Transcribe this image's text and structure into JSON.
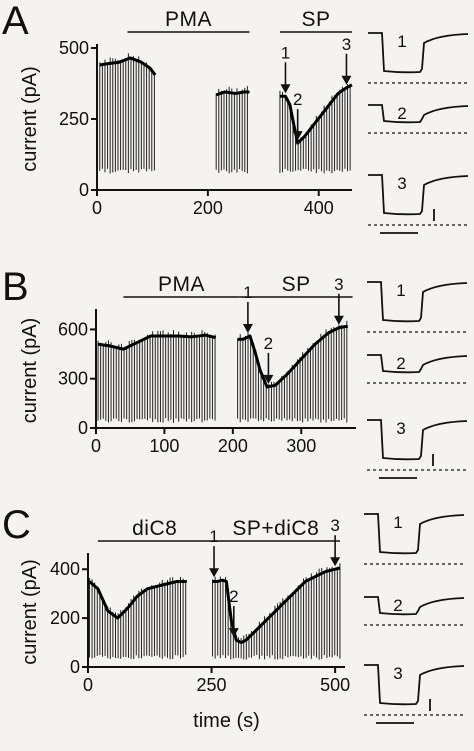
{
  "chart_data": [
    {
      "type": "line",
      "panel": "A",
      "xlabel": "",
      "ylabel": "current (pA)",
      "x_ticks": [
        "0",
        "200",
        "400"
      ],
      "y_ticks": [
        "0",
        "250",
        "500"
      ],
      "xlim": [
        0,
        460
      ],
      "ylim": [
        0,
        500
      ],
      "conditions": [
        {
          "label": "PMA",
          "x_start": 55,
          "x_end": 275
        },
        {
          "label": "SP",
          "x_start": 330,
          "x_end": 460
        }
      ],
      "trace_baseline": 75,
      "series": [
        {
          "x": [
            5,
            20,
            40,
            60,
            80,
            95,
            105
          ],
          "y": [
            440,
            445,
            450,
            465,
            450,
            430,
            405
          ]
        },
        {
          "x": [
            215,
            230,
            250,
            265,
            275
          ],
          "y": [
            335,
            345,
            340,
            345,
            345
          ]
        },
        {
          "x": [
            330,
            340,
            348,
            355,
            362,
            375,
            395,
            415,
            435,
            450,
            460
          ],
          "y": [
            330,
            330,
            300,
            230,
            165,
            190,
            240,
            290,
            340,
            360,
            370
          ]
        }
      ],
      "markers": [
        {
          "label": "1",
          "x": 340,
          "y": 330
        },
        {
          "label": "2",
          "x": 362,
          "y": 165
        },
        {
          "label": "3",
          "x": 450,
          "y": 360
        }
      ],
      "insets": [
        "1",
        "2",
        "3"
      ]
    },
    {
      "type": "line",
      "panel": "B",
      "xlabel": "",
      "ylabel": "current (pA)",
      "x_ticks": [
        "0",
        "100",
        "200",
        "300"
      ],
      "y_ticks": [
        "0",
        "300",
        "600"
      ],
      "xlim": [
        0,
        380
      ],
      "ylim": [
        0,
        700
      ],
      "conditions": [
        {
          "label": "PMA",
          "x_start": 40,
          "x_end": 210
        },
        {
          "label": "SP",
          "x_start": 210,
          "x_end": 375
        }
      ],
      "trace_baseline": 60,
      "series": [
        {
          "x": [
            3,
            20,
            40,
            60,
            80,
            100,
            120,
            140,
            160,
            175
          ],
          "y": [
            510,
            500,
            480,
            520,
            560,
            560,
            560,
            555,
            565,
            550
          ]
        },
        {
          "x": [
            207,
            215,
            225,
            232,
            240,
            250,
            262,
            280,
            300,
            320,
            340,
            355,
            368
          ],
          "y": [
            540,
            540,
            560,
            470,
            350,
            250,
            260,
            330,
            420,
            510,
            580,
            610,
            620
          ]
        }
      ],
      "markers": [
        {
          "label": "1",
          "x": 222,
          "y": 560
        },
        {
          "label": "2",
          "x": 252,
          "y": 250
        },
        {
          "label": "3",
          "x": 355,
          "y": 610
        }
      ],
      "insets": [
        "1",
        "2",
        "3"
      ]
    },
    {
      "type": "line",
      "panel": "C",
      "xlabel": "time (s)",
      "ylabel": "current (pA)",
      "x_ticks": [
        "0",
        "250",
        "500"
      ],
      "y_ticks": [
        "0",
        "200",
        "400"
      ],
      "xlim": [
        0,
        520
      ],
      "ylim": [
        0,
        450
      ],
      "conditions": [
        {
          "label": "diC8",
          "x_start": 20,
          "x_end": 250
        },
        {
          "label": "SP+diC8",
          "x_start": 250,
          "x_end": 510
        }
      ],
      "trace_baseline": 50,
      "series": [
        {
          "x": [
            3,
            20,
            40,
            60,
            80,
            100,
            120,
            140,
            160,
            180,
            200
          ],
          "y": [
            350,
            320,
            230,
            200,
            240,
            290,
            320,
            330,
            340,
            350,
            350
          ]
        },
        {
          "x": [
            252,
            262,
            272,
            280,
            290,
            300,
            310,
            320,
            340,
            360,
            380,
            400,
            420,
            440,
            460,
            480,
            500,
            510
          ],
          "y": [
            350,
            350,
            355,
            350,
            190,
            110,
            100,
            110,
            150,
            190,
            230,
            270,
            310,
            350,
            370,
            390,
            400,
            405
          ]
        }
      ],
      "markers": [
        {
          "label": "1",
          "x": 255,
          "y": 355
        },
        {
          "label": "2",
          "x": 295,
          "y": 110
        },
        {
          "label": "3",
          "x": 500,
          "y": 400
        }
      ],
      "insets": [
        "1",
        "2",
        "3"
      ]
    }
  ]
}
